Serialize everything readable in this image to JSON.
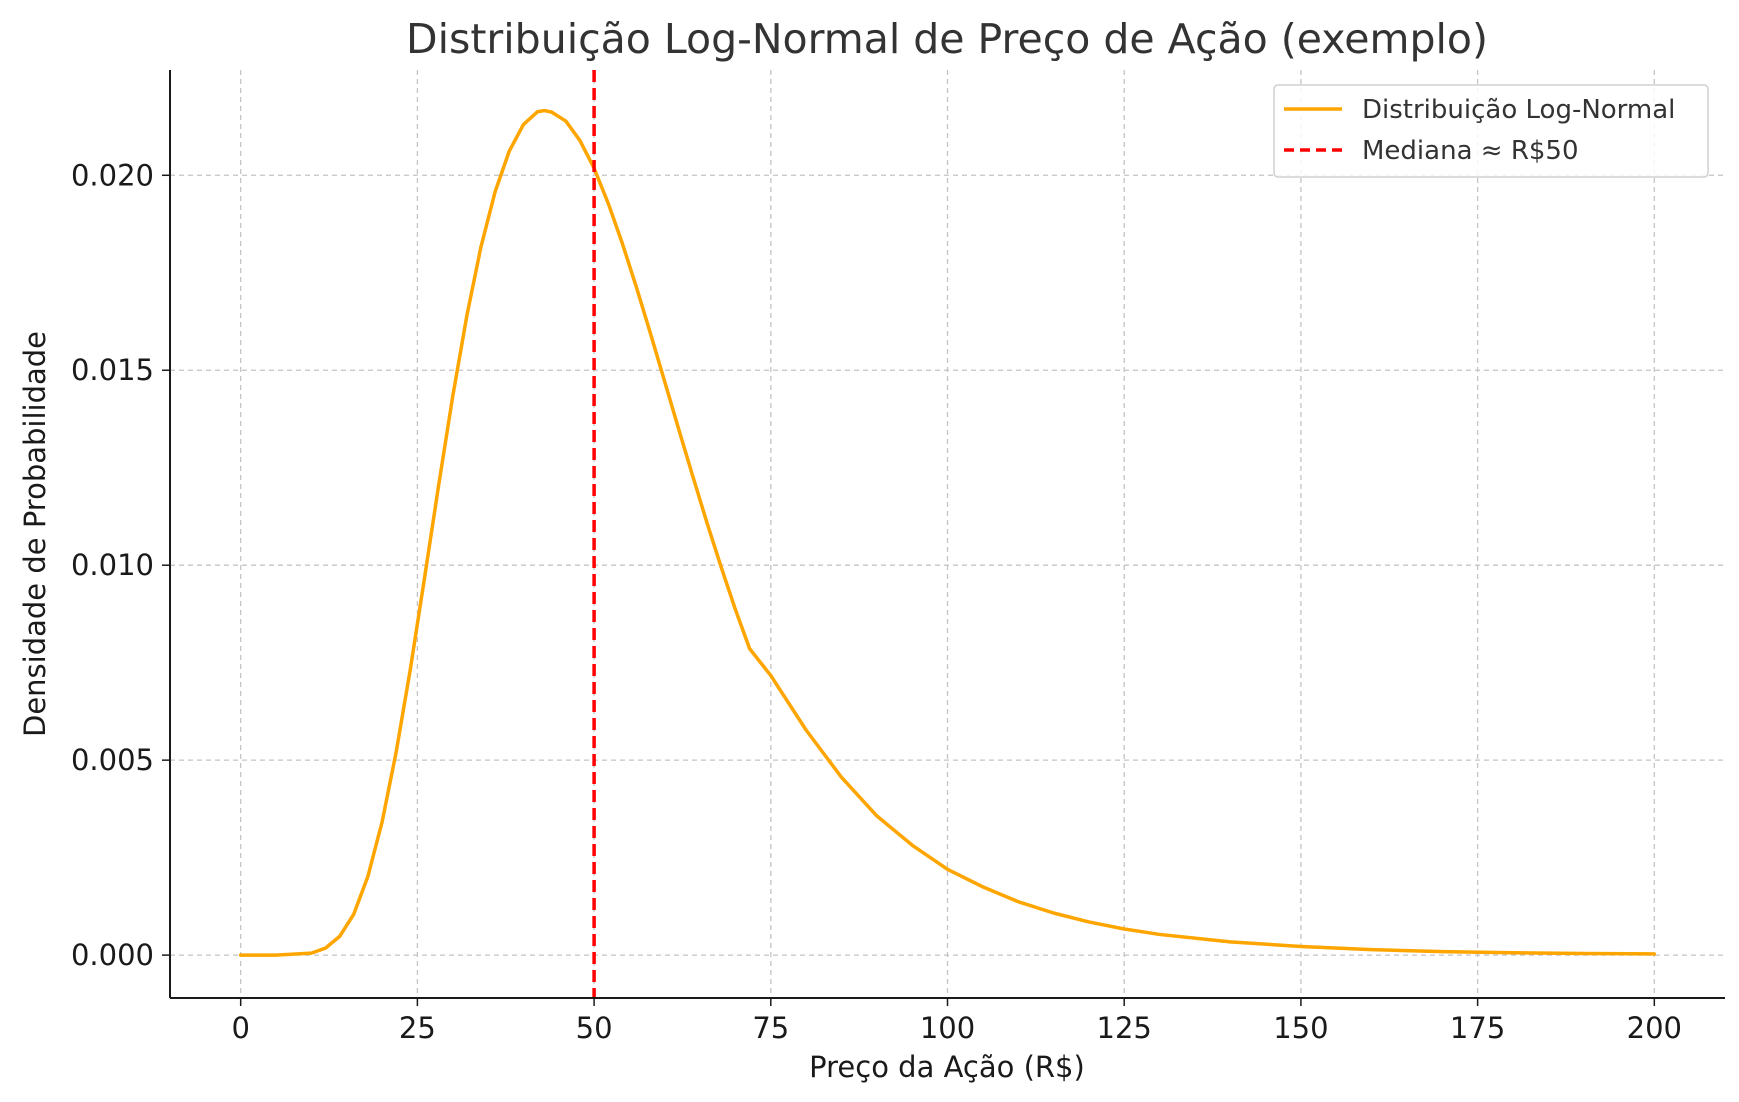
{
  "chart_data": {
    "type": "line",
    "title": "Distribuição Log-Normal de Preço de Ação (exemplo)",
    "xlabel": "Preço da Ação (R$)",
    "ylabel": "Densidade de Probabilidade",
    "xlim": [
      -10,
      210
    ],
    "ylim": [
      -0.0011,
      0.0227
    ],
    "x_ticks": [
      0,
      25,
      50,
      75,
      100,
      125,
      150,
      175,
      200
    ],
    "x_tick_labels": [
      "0",
      "25",
      "50",
      "75",
      "100",
      "125",
      "150",
      "175",
      "200"
    ],
    "y_ticks": [
      0.0,
      0.005,
      0.01,
      0.015,
      0.02
    ],
    "y_tick_labels": [
      "0.000",
      "0.005",
      "0.010",
      "0.015",
      "0.020"
    ],
    "grid": true,
    "legend": "top-right",
    "series": [
      {
        "name": "Distribuição Log-Normal",
        "color": "#FFA500",
        "style": "solid",
        "x": [
          0,
          5,
          10,
          12,
          14,
          16,
          18,
          20,
          22,
          24,
          26,
          28,
          30,
          32,
          34,
          36,
          38,
          40,
          42,
          43,
          44,
          46,
          48,
          50,
          52,
          54,
          56,
          58,
          60,
          62,
          64,
          66,
          68,
          70,
          72,
          75,
          80,
          85,
          90,
          95,
          100,
          105,
          110,
          115,
          120,
          125,
          130,
          140,
          150,
          160,
          170,
          180,
          190,
          200
        ],
        "y": [
          0.0,
          0.0,
          5e-05,
          0.00018,
          0.00048,
          0.00105,
          0.00202,
          0.00341,
          0.00521,
          0.00733,
          0.00966,
          0.01204,
          0.01433,
          0.0164,
          0.01817,
          0.01958,
          0.02062,
          0.0213,
          0.02163,
          0.02166,
          0.02162,
          0.02139,
          0.02089,
          0.02018,
          0.01928,
          0.01825,
          0.01712,
          0.01593,
          0.0147,
          0.01347,
          0.01226,
          0.01107,
          0.00994,
          0.00886,
          0.00786,
          0.00717,
          0.00577,
          0.00456,
          0.00357,
          0.00282,
          0.0022,
          0.00175,
          0.00137,
          0.00108,
          0.00085,
          0.00067,
          0.00053,
          0.00034,
          0.00022,
          0.00014,
          9e-05,
          6e-05,
          4e-05,
          3e-05
        ]
      },
      {
        "name": "Mediana ≈ R$50",
        "color": "#FF0000",
        "style": "dashed",
        "type": "vline",
        "x": 50
      }
    ]
  }
}
